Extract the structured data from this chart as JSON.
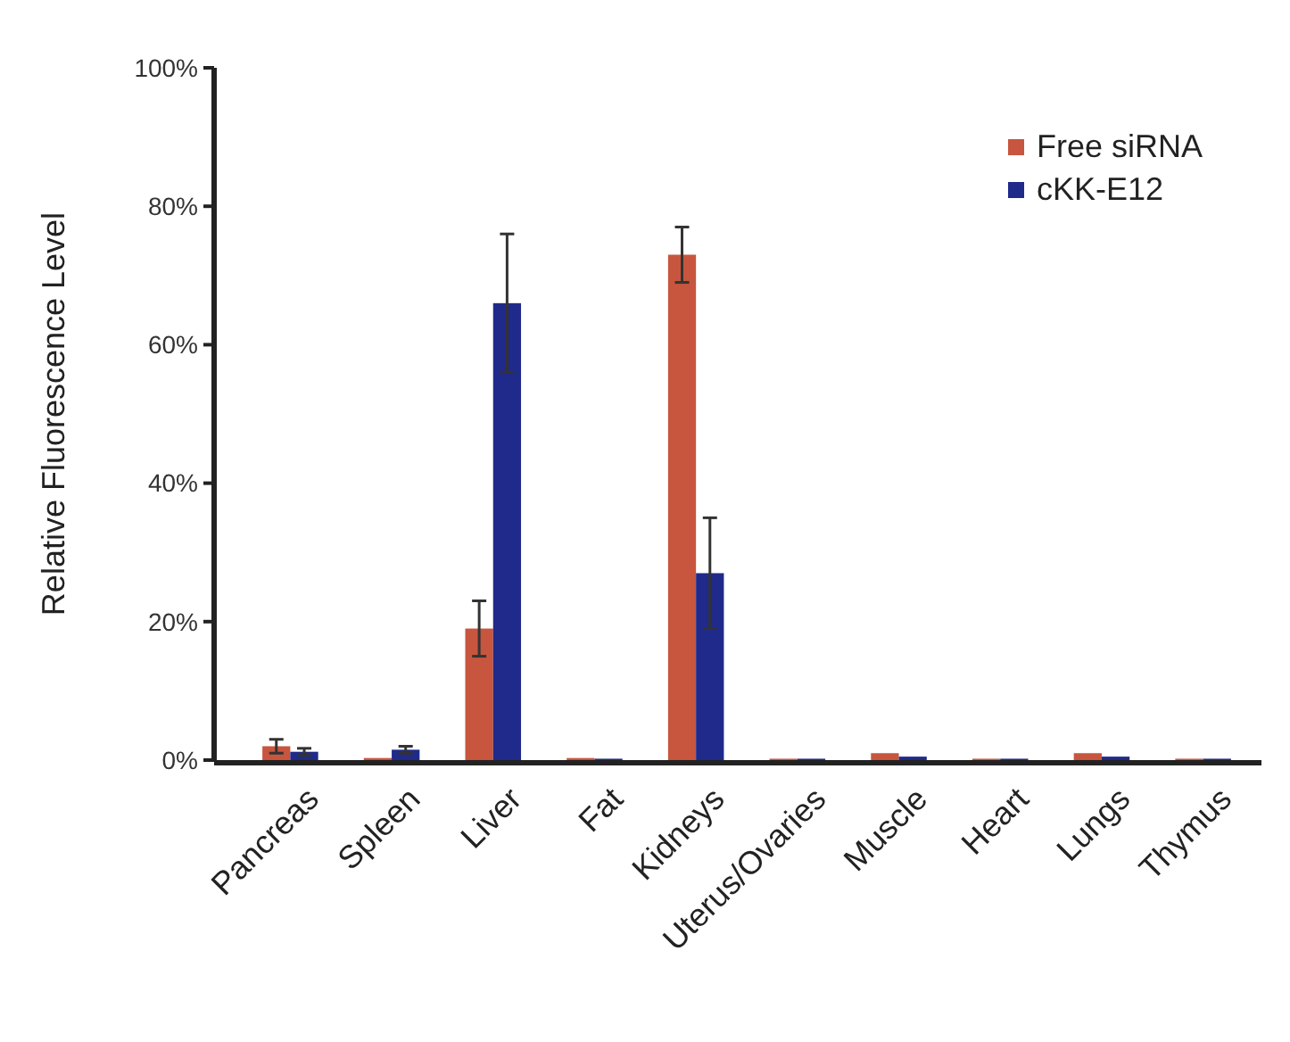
{
  "chart_data": {
    "type": "bar",
    "ylabel": "Relative Fluorescence Level",
    "categories": [
      "Pancreas",
      "Spleen",
      "Liver",
      "Fat",
      "Kidneys",
      "Uterus/Ovaries",
      "Muscle",
      "Heart",
      "Lungs",
      "Thymus"
    ],
    "series": [
      {
        "name": "Free siRNA",
        "color": "#c8553d",
        "values": [
          2,
          0.3,
          19,
          0.3,
          73,
          0.2,
          1,
          0.2,
          1,
          0.2
        ],
        "errors": [
          1,
          null,
          4,
          null,
          4,
          null,
          null,
          null,
          null,
          null
        ]
      },
      {
        "name": "cKK-E12",
        "color": "#1f2a8a",
        "values": [
          1.2,
          1.5,
          66,
          0.2,
          27,
          0.2,
          0.5,
          0.2,
          0.5,
          0.2
        ],
        "errors": [
          0.5,
          0.5,
          10,
          null,
          8,
          null,
          null,
          null,
          null,
          null
        ]
      }
    ],
    "ylim": [
      0,
      100
    ],
    "yticks": [
      {
        "value": 0,
        "label": "0%"
      },
      {
        "value": 20,
        "label": "20%"
      },
      {
        "value": 40,
        "label": "40%"
      },
      {
        "value": 60,
        "label": "60%"
      },
      {
        "value": 80,
        "label": "80%"
      },
      {
        "value": 100,
        "label": "100%"
      }
    ],
    "legend": "top right"
  }
}
